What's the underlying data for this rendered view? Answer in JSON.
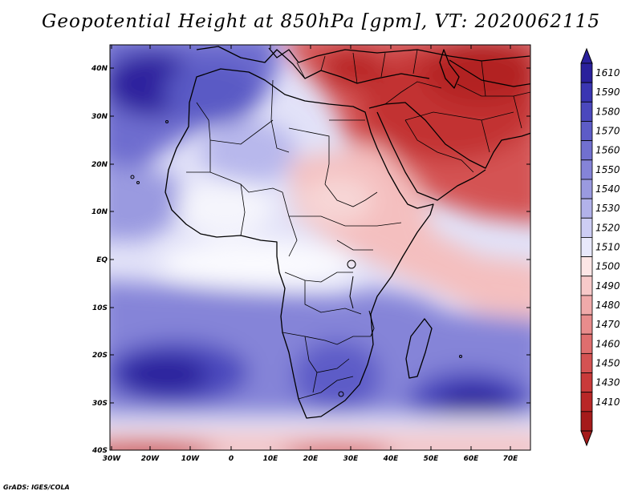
{
  "title": "Geopotential Height at 850hPa [gpm], VT: 2020062115",
  "credit": "GrADS: IGES/COLA",
  "map": {
    "region": "Africa and Middle East",
    "lat_labels": [
      "40N",
      "30N",
      "20N",
      "10N",
      "EQ",
      "10S",
      "20S",
      "30S",
      "40S"
    ],
    "lon_labels": [
      "30W",
      "20W",
      "10W",
      "0",
      "10E",
      "20E",
      "30E",
      "40E",
      "50E",
      "60E",
      "70E"
    ],
    "lat_range": [
      -40,
      45
    ],
    "lon_range": [
      -30,
      75
    ]
  },
  "colorbar": {
    "labels": [
      "1610",
      "1590",
      "1580",
      "1570",
      "1560",
      "1550",
      "1540",
      "1530",
      "1520",
      "1510",
      "1500",
      "1490",
      "1480",
      "1470",
      "1460",
      "1450",
      "1430",
      "1410"
    ],
    "colors": [
      "#2a209c",
      "#3a35b2",
      "#4b48bd",
      "#5d5cc7",
      "#7170cf",
      "#8584d8",
      "#9a9ae0",
      "#b2b2ea",
      "#cdcdf4",
      "#e8e8fb",
      "#fde6e6",
      "#f7c9c9",
      "#f0aaaa",
      "#e88c8c",
      "#df6e6e",
      "#d45252",
      "#c93a3a",
      "#b92727",
      "#a51b1b"
    ]
  }
}
